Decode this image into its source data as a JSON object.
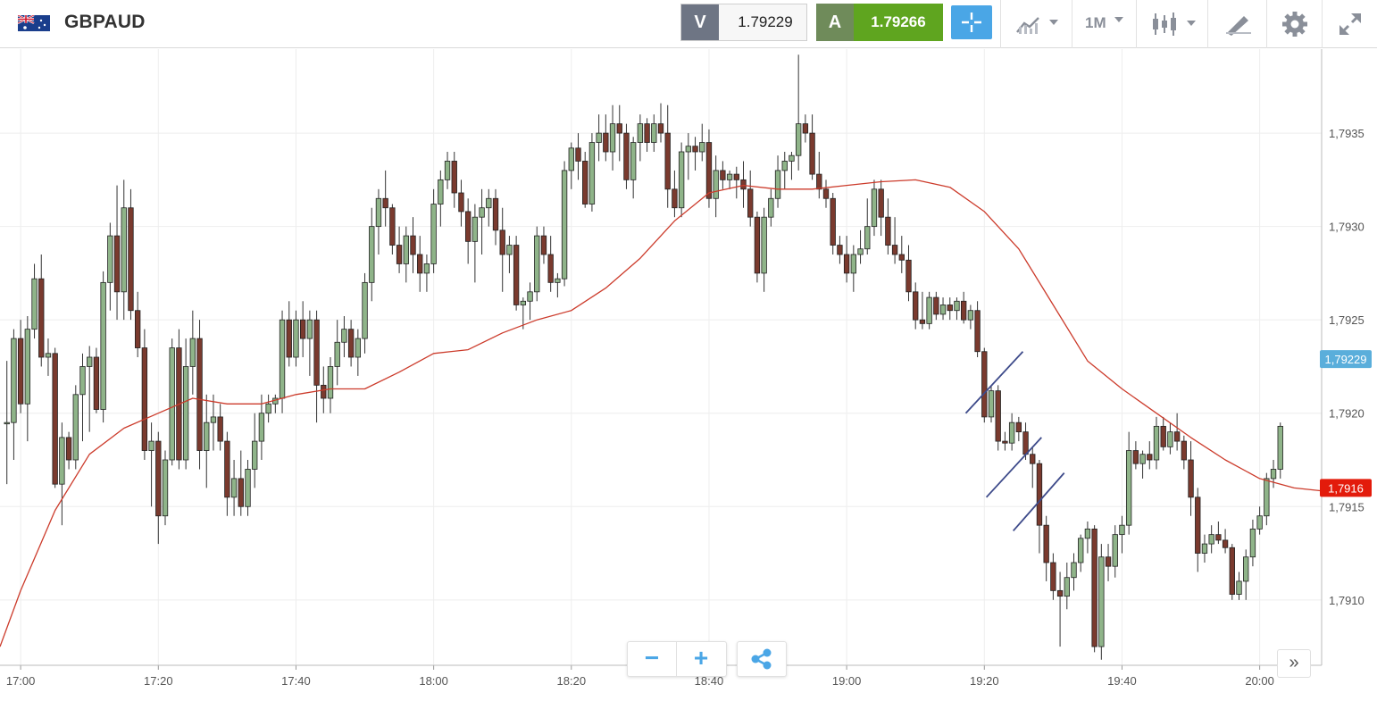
{
  "header": {
    "symbol": "GBPAUD",
    "bid_label": "V",
    "bid_value": "1.79229",
    "ask_label": "A",
    "ask_value": "1.79266",
    "timeframe": "1M"
  },
  "icons": [
    "flag-gb-au-icon",
    "crosshair-icon",
    "chart-type-icon",
    "candlestick-icon",
    "drawing-tools-icon",
    "settings-gear-icon",
    "fullscreen-icon",
    "zoom-out-icon",
    "zoom-in-icon",
    "share-icon",
    "scroll-right-icon"
  ],
  "controls": {
    "zoom_out": "−",
    "zoom_in": "+",
    "more": "»"
  },
  "colors": {
    "bull": "#8fb489",
    "bear": "#7a3a2e",
    "ma": "#cc3b2b",
    "trendline": "#3d4a8a",
    "price_tag_current": "#5aaedb",
    "price_tag_ma": "#e31b0b",
    "ask_green": "#5fa51f"
  },
  "chart_data": {
    "type": "candlestick",
    "ylim": [
      1.79065,
      1.79395
    ],
    "xlim": [
      "16:57",
      "20:09"
    ],
    "yticks": [
      "1,7910",
      "1,7915",
      "1,7920",
      "1,7925",
      "1,7930",
      "1,7935"
    ],
    "ytick_values": [
      1.791,
      1.7915,
      1.792,
      1.7925,
      1.793,
      1.7935
    ],
    "xticks": [
      "17:00",
      "17:20",
      "17:40",
      "18:00",
      "18:20",
      "18:40",
      "19:00",
      "19:20",
      "19:40",
      "20:00"
    ],
    "xtick_minutes": [
      0,
      20,
      40,
      60,
      80,
      100,
      120,
      140,
      160,
      180
    ],
    "candles_ohlc": [
      [
        1.79195,
        1.79228,
        1.79162,
        1.79195
      ],
      [
        1.79195,
        1.79245,
        1.79175,
        1.7924
      ],
      [
        1.7924,
        1.7925,
        1.792,
        1.79205
      ],
      [
        1.79205,
        1.79252,
        1.79185,
        1.79245
      ],
      [
        1.79245,
        1.7928,
        1.7924,
        1.79272
      ],
      [
        1.79272,
        1.79285,
        1.79225,
        1.7923
      ],
      [
        1.7923,
        1.7924,
        1.7922,
        1.79232
      ],
      [
        1.79232,
        1.79235,
        1.7916,
        1.79162
      ],
      [
        1.79162,
        1.79195,
        1.7914,
        1.79187
      ],
      [
        1.79187,
        1.7919,
        1.7917,
        1.79175
      ],
      [
        1.79175,
        1.79215,
        1.7917,
        1.7921
      ],
      [
        1.7921,
        1.79232,
        1.79185,
        1.79225
      ],
      [
        1.79225,
        1.79236,
        1.7919,
        1.7923
      ],
      [
        1.7923,
        1.79235,
        1.792,
        1.79202
      ],
      [
        1.79202,
        1.79276,
        1.79195,
        1.7927
      ],
      [
        1.7927,
        1.79302,
        1.79255,
        1.79295
      ],
      [
        1.79295,
        1.79322,
        1.7925,
        1.79265
      ],
      [
        1.79265,
        1.79325,
        1.7925,
        1.7931
      ],
      [
        1.7931,
        1.7932,
        1.7925,
        1.79255
      ],
      [
        1.79255,
        1.79265,
        1.7923,
        1.79235
      ],
      [
        1.79235,
        1.79245,
        1.79175,
        1.7918
      ],
      [
        1.7918,
        1.79195,
        1.7915,
        1.79185
      ],
      [
        1.79185,
        1.7919,
        1.7913,
        1.79145
      ],
      [
        1.79145,
        1.7918,
        1.7914,
        1.79175
      ],
      [
        1.79175,
        1.7924,
        1.79172,
        1.79235
      ],
      [
        1.79235,
        1.79245,
        1.7917,
        1.79175
      ],
      [
        1.79175,
        1.7924,
        1.7917,
        1.79225
      ],
      [
        1.79225,
        1.79255,
        1.7921,
        1.7924
      ],
      [
        1.7924,
        1.7925,
        1.7917,
        1.7918
      ],
      [
        1.7918,
        1.7921,
        1.7916,
        1.79195
      ],
      [
        1.79195,
        1.7921,
        1.7918,
        1.79198
      ],
      [
        1.79198,
        1.79205,
        1.7918,
        1.79185
      ],
      [
        1.79185,
        1.7919,
        1.79145,
        1.79155
      ],
      [
        1.79155,
        1.79175,
        1.79145,
        1.79165
      ],
      [
        1.79165,
        1.7918,
        1.79145,
        1.7915
      ],
      [
        1.7915,
        1.79175,
        1.79145,
        1.7917
      ],
      [
        1.7917,
        1.792,
        1.7916,
        1.79185
      ],
      [
        1.79185,
        1.7921,
        1.79175,
        1.792
      ],
      [
        1.792,
        1.7921,
        1.79195,
        1.79205
      ],
      [
        1.79205,
        1.7921,
        1.792,
        1.79208
      ],
      [
        1.79208,
        1.79255,
        1.792,
        1.7925
      ],
      [
        1.7925,
        1.7926,
        1.79225,
        1.7923
      ],
      [
        1.7923,
        1.79255,
        1.79225,
        1.7925
      ],
      [
        1.7925,
        1.7926,
        1.7923,
        1.7924
      ],
      [
        1.7924,
        1.79255,
        1.7922,
        1.7925
      ],
      [
        1.7925,
        1.79255,
        1.79195,
        1.79215
      ],
      [
        1.79215,
        1.79225,
        1.792,
        1.79208
      ],
      [
        1.79208,
        1.7923,
        1.792,
        1.79225
      ],
      [
        1.79225,
        1.7925,
        1.79215,
        1.79238
      ],
      [
        1.79238,
        1.79252,
        1.7923,
        1.79245
      ],
      [
        1.79245,
        1.7925,
        1.79225,
        1.7923
      ],
      [
        1.7923,
        1.79245,
        1.7922,
        1.7924
      ],
      [
        1.7924,
        1.79275,
        1.79232,
        1.7927
      ],
      [
        1.7927,
        1.7931,
        1.7926,
        1.793
      ],
      [
        1.793,
        1.7932,
        1.79285,
        1.79315
      ],
      [
        1.79315,
        1.7933,
        1.793,
        1.7931
      ],
      [
        1.7931,
        1.79312,
        1.79285,
        1.7929
      ],
      [
        1.7929,
        1.793,
        1.79275,
        1.7928
      ],
      [
        1.7928,
        1.793,
        1.7927,
        1.79295
      ],
      [
        1.79295,
        1.79305,
        1.79275,
        1.79285
      ],
      [
        1.79285,
        1.79295,
        1.79265,
        1.79275
      ],
      [
        1.79275,
        1.79285,
        1.79265,
        1.7928
      ],
      [
        1.7928,
        1.7932,
        1.79275,
        1.79312
      ],
      [
        1.79312,
        1.7933,
        1.793,
        1.79325
      ],
      [
        1.79325,
        1.7934,
        1.7932,
        1.79335
      ],
      [
        1.79335,
        1.7934,
        1.7931,
        1.79318
      ],
      [
        1.79318,
        1.79325,
        1.793,
        1.79308
      ],
      [
        1.79308,
        1.79315,
        1.7928,
        1.79292
      ],
      [
        1.79292,
        1.79312,
        1.7927,
        1.79305
      ],
      [
        1.79305,
        1.7932,
        1.79285,
        1.7931
      ],
      [
        1.7931,
        1.7932,
        1.793,
        1.79315
      ],
      [
        1.79315,
        1.7932,
        1.7929,
        1.79298
      ],
      [
        1.79298,
        1.7931,
        1.79265,
        1.79285
      ],
      [
        1.79285,
        1.79295,
        1.79275,
        1.7929
      ],
      [
        1.7929,
        1.79295,
        1.79255,
        1.79258
      ],
      [
        1.79258,
        1.79262,
        1.79245,
        1.7926
      ],
      [
        1.7926,
        1.7927,
        1.7925,
        1.79265
      ],
      [
        1.79265,
        1.793,
        1.7926,
        1.79295
      ],
      [
        1.79295,
        1.793,
        1.7928,
        1.79285
      ],
      [
        1.79285,
        1.79295,
        1.79265,
        1.7927
      ],
      [
        1.7927,
        1.79275,
        1.79262,
        1.79272
      ],
      [
        1.79272,
        1.79335,
        1.79268,
        1.7933
      ],
      [
        1.7933,
        1.79345,
        1.7932,
        1.79342
      ],
      [
        1.79342,
        1.7935,
        1.79325,
        1.79335
      ],
      [
        1.79335,
        1.7934,
        1.7931,
        1.79312
      ],
      [
        1.79312,
        1.7935,
        1.79308,
        1.79345
      ],
      [
        1.79345,
        1.7936,
        1.79335,
        1.7935
      ],
      [
        1.7935,
        1.7936,
        1.79335,
        1.7934
      ],
      [
        1.7934,
        1.79365,
        1.7933,
        1.79355
      ],
      [
        1.79355,
        1.79365,
        1.79335,
        1.7935
      ],
      [
        1.7935,
        1.79355,
        1.7932,
        1.79325
      ],
      [
        1.79325,
        1.79348,
        1.79315,
        1.79345
      ],
      [
        1.79345,
        1.7936,
        1.79335,
        1.79355
      ],
      [
        1.79355,
        1.79358,
        1.7934,
        1.79345
      ],
      [
        1.79345,
        1.7936,
        1.7934,
        1.79355
      ],
      [
        1.79355,
        1.79366,
        1.79345,
        1.7935
      ],
      [
        1.7935,
        1.79365,
        1.7931,
        1.7932
      ],
      [
        1.7932,
        1.7933,
        1.79305,
        1.7931
      ],
      [
        1.7931,
        1.79345,
        1.79305,
        1.7934
      ],
      [
        1.7934,
        1.7935,
        1.79325,
        1.79343
      ],
      [
        1.79343,
        1.79348,
        1.7933,
        1.7934
      ],
      [
        1.7934,
        1.79355,
        1.79335,
        1.79345
      ],
      [
        1.79345,
        1.79352,
        1.7931,
        1.79315
      ],
      [
        1.79315,
        1.79338,
        1.79305,
        1.7933
      ],
      [
        1.7933,
        1.79335,
        1.7932,
        1.79325
      ],
      [
        1.79325,
        1.7933,
        1.7932,
        1.79328
      ],
      [
        1.79328,
        1.79332,
        1.79315,
        1.79325
      ],
      [
        1.79325,
        1.79335,
        1.7931,
        1.7932
      ],
      [
        1.7932,
        1.7933,
        1.793,
        1.79305
      ],
      [
        1.79305,
        1.79308,
        1.7927,
        1.79275
      ],
      [
        1.79275,
        1.7931,
        1.79265,
        1.79305
      ],
      [
        1.79305,
        1.7932,
        1.793,
        1.79315
      ],
      [
        1.79315,
        1.79338,
        1.7931,
        1.7933
      ],
      [
        1.7933,
        1.7934,
        1.7932,
        1.79335
      ],
      [
        1.79335,
        1.7934,
        1.79325,
        1.79338
      ],
      [
        1.79338,
        1.79392,
        1.7933,
        1.79355
      ],
      [
        1.79355,
        1.7936,
        1.79345,
        1.7935
      ],
      [
        1.7935,
        1.7936,
        1.79325,
        1.79328
      ],
      [
        1.79328,
        1.7934,
        1.79315,
        1.7932
      ],
      [
        1.7932,
        1.79325,
        1.7931,
        1.79315
      ],
      [
        1.79315,
        1.79318,
        1.79285,
        1.7929
      ],
      [
        1.7929,
        1.79295,
        1.7928,
        1.79285
      ],
      [
        1.79285,
        1.79295,
        1.7927,
        1.79275
      ],
      [
        1.79275,
        1.7929,
        1.79265,
        1.79285
      ],
      [
        1.79285,
        1.79298,
        1.7928,
        1.79288
      ],
      [
        1.79288,
        1.79315,
        1.79285,
        1.793
      ],
      [
        1.793,
        1.79325,
        1.79295,
        1.7932
      ],
      [
        1.7932,
        1.79325,
        1.79295,
        1.79305
      ],
      [
        1.79305,
        1.79315,
        1.79285,
        1.7929
      ],
      [
        1.7929,
        1.79305,
        1.7928,
        1.79285
      ],
      [
        1.79285,
        1.79295,
        1.79275,
        1.79282
      ],
      [
        1.79282,
        1.7929,
        1.7926,
        1.79265
      ],
      [
        1.79265,
        1.7927,
        1.79245,
        1.7925
      ],
      [
        1.7925,
        1.79265,
        1.79245,
        1.79248
      ],
      [
        1.79248,
        1.79265,
        1.79245,
        1.79262
      ],
      [
        1.79262,
        1.79265,
        1.7925,
        1.79253
      ],
      [
        1.79253,
        1.79262,
        1.7925,
        1.79258
      ],
      [
        1.79258,
        1.79262,
        1.7925,
        1.79255
      ],
      [
        1.79255,
        1.79262,
        1.7925,
        1.7926
      ],
      [
        1.7926,
        1.79265,
        1.79248,
        1.7925
      ],
      [
        1.7925,
        1.79258,
        1.79245,
        1.79255
      ],
      [
        1.79255,
        1.7926,
        1.7923,
        1.79233
      ],
      [
        1.79233,
        1.79235,
        1.79195,
        1.79198
      ],
      [
        1.79198,
        1.79215,
        1.79195,
        1.79212
      ],
      [
        1.79212,
        1.79215,
        1.7918,
        1.79185
      ],
      [
        1.79185,
        1.7919,
        1.7918,
        1.79184
      ],
      [
        1.79184,
        1.792,
        1.7918,
        1.79195
      ],
      [
        1.79195,
        1.79198,
        1.79185,
        1.7919
      ],
      [
        1.7919,
        1.79195,
        1.79175,
        1.79178
      ],
      [
        1.79178,
        1.79182,
        1.7916,
        1.79173
      ],
      [
        1.79173,
        1.79175,
        1.79125,
        1.7914
      ],
      [
        1.7914,
        1.79145,
        1.7911,
        1.7912
      ],
      [
        1.7912,
        1.79125,
        1.791,
        1.79105
      ],
      [
        1.79105,
        1.79115,
        1.79075,
        1.79102
      ],
      [
        1.79102,
        1.7912,
        1.79095,
        1.79112
      ],
      [
        1.79112,
        1.79125,
        1.79105,
        1.7912
      ],
      [
        1.7912,
        1.79135,
        1.79115,
        1.79133
      ],
      [
        1.79133,
        1.79142,
        1.79125,
        1.79138
      ],
      [
        1.79138,
        1.7914,
        1.79072,
        1.79075
      ],
      [
        1.79075,
        1.7913,
        1.79068,
        1.79123
      ],
      [
        1.79123,
        1.7913,
        1.7911,
        1.79118
      ],
      [
        1.79118,
        1.7914,
        1.79112,
        1.79135
      ],
      [
        1.79135,
        1.79145,
        1.79125,
        1.7914
      ],
      [
        1.7914,
        1.7919,
        1.79135,
        1.7918
      ],
      [
        1.7918,
        1.79185,
        1.7917,
        1.79173
      ],
      [
        1.79173,
        1.7918,
        1.79165,
        1.79178
      ],
      [
        1.79178,
        1.79185,
        1.7917,
        1.79175
      ],
      [
        1.79175,
        1.79198,
        1.7917,
        1.79193
      ],
      [
        1.79193,
        1.79198,
        1.7918,
        1.79182
      ],
      [
        1.79182,
        1.79195,
        1.79178,
        1.7919
      ],
      [
        1.7919,
        1.792,
        1.7918,
        1.79185
      ],
      [
        1.79185,
        1.79188,
        1.7917,
        1.79175
      ],
      [
        1.79175,
        1.79185,
        1.79145,
        1.79155
      ],
      [
        1.79155,
        1.7916,
        1.79115,
        1.79125
      ],
      [
        1.79125,
        1.79135,
        1.7912,
        1.7913
      ],
      [
        1.7913,
        1.7914,
        1.79125,
        1.79135
      ],
      [
        1.79135,
        1.79142,
        1.7913,
        1.79132
      ],
      [
        1.79132,
        1.79138,
        1.79125,
        1.79128
      ],
      [
        1.79128,
        1.7913,
        1.791,
        1.79103
      ],
      [
        1.79103,
        1.79115,
        1.791,
        1.7911
      ],
      [
        1.7911,
        1.79127,
        1.791,
        1.79123
      ],
      [
        1.79123,
        1.79143,
        1.79118,
        1.79138
      ],
      [
        1.79138,
        1.7915,
        1.79135,
        1.79145
      ],
      [
        1.79145,
        1.79168,
        1.7914,
        1.79165
      ],
      [
        1.79165,
        1.79175,
        1.7916,
        1.7917
      ],
      [
        1.7917,
        1.79195,
        1.79165,
        1.79193
      ]
    ],
    "moving_average": {
      "x_minutes": [
        -3,
        0,
        5,
        10,
        15,
        20,
        25,
        30,
        35,
        40,
        45,
        50,
        55,
        60,
        65,
        70,
        75,
        80,
        85,
        90,
        95,
        100,
        105,
        110,
        115,
        120,
        125,
        130,
        135,
        140,
        145,
        150,
        155,
        160,
        165,
        170,
        175,
        180,
        185,
        190
      ],
      "values": [
        1.79075,
        1.79105,
        1.79148,
        1.79178,
        1.79192,
        1.792,
        1.79208,
        1.79205,
        1.79205,
        1.7921,
        1.79213,
        1.79213,
        1.79222,
        1.79232,
        1.79234,
        1.79243,
        1.7925,
        1.79255,
        1.79267,
        1.79283,
        1.79303,
        1.79318,
        1.79322,
        1.7932,
        1.7932,
        1.79322,
        1.79324,
        1.79325,
        1.79321,
        1.79308,
        1.79288,
        1.79258,
        1.79228,
        1.79213,
        1.792,
        1.79187,
        1.79175,
        1.79165,
        1.7916,
        1.79158
      ]
    },
    "trendlines": [
      {
        "x1": 137.3,
        "y1": 1.792,
        "x2": 145.6,
        "y2": 1.79233
      },
      {
        "x1": 140.3,
        "y1": 1.79155,
        "x2": 148.3,
        "y2": 1.79187
      },
      {
        "x1": 144.2,
        "y1": 1.79137,
        "x2": 151.6,
        "y2": 1.79168
      }
    ],
    "price_tags": [
      {
        "label": "1,79229",
        "value": 1.79229,
        "color": "#5aaedb"
      },
      {
        "label": "1,7916",
        "value": 1.7916,
        "color": "#e31b0b"
      }
    ],
    "grid": true
  }
}
